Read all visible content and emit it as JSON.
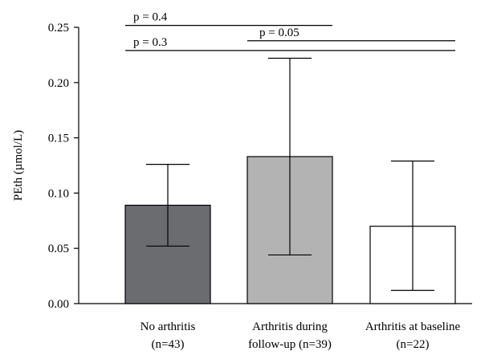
{
  "chart_data": {
    "type": "bar",
    "title": "",
    "xlabel": "",
    "ylabel": "PEth (µmol/L)",
    "ylim": [
      0,
      0.25
    ],
    "yticks": [
      "0.00",
      "0.05",
      "0.10",
      "0.15",
      "0.20",
      "0.25"
    ],
    "ytick_values": [
      0,
      0.05,
      0.1,
      0.15,
      0.2,
      0.25
    ],
    "grid": false,
    "legend": "none",
    "categories": [
      {
        "line1": "No arthritis",
        "line2": "(n=43)"
      },
      {
        "line1": "Arthritis during",
        "line2": "follow-up (n=39)"
      },
      {
        "line1": "Arthritis at baseline",
        "line2": "(n=22)"
      }
    ],
    "values": [
      0.089,
      0.133,
      0.07
    ],
    "error_low": [
      0.052,
      0.044,
      0.012
    ],
    "error_high": [
      0.126,
      0.222,
      0.129
    ],
    "colors": [
      "#6b6c70",
      "#b3b3b3",
      "#ffffff"
    ],
    "annotations": [
      {
        "text": "p = 0.4",
        "from": 0,
        "to": 1,
        "level": 0.2517
      },
      {
        "text": "p = 0.05",
        "from": 1,
        "to": 2,
        "level": 0.2378
      },
      {
        "text": "p = 0.3",
        "from": 0,
        "to": 2,
        "level": 0.229
      }
    ]
  }
}
